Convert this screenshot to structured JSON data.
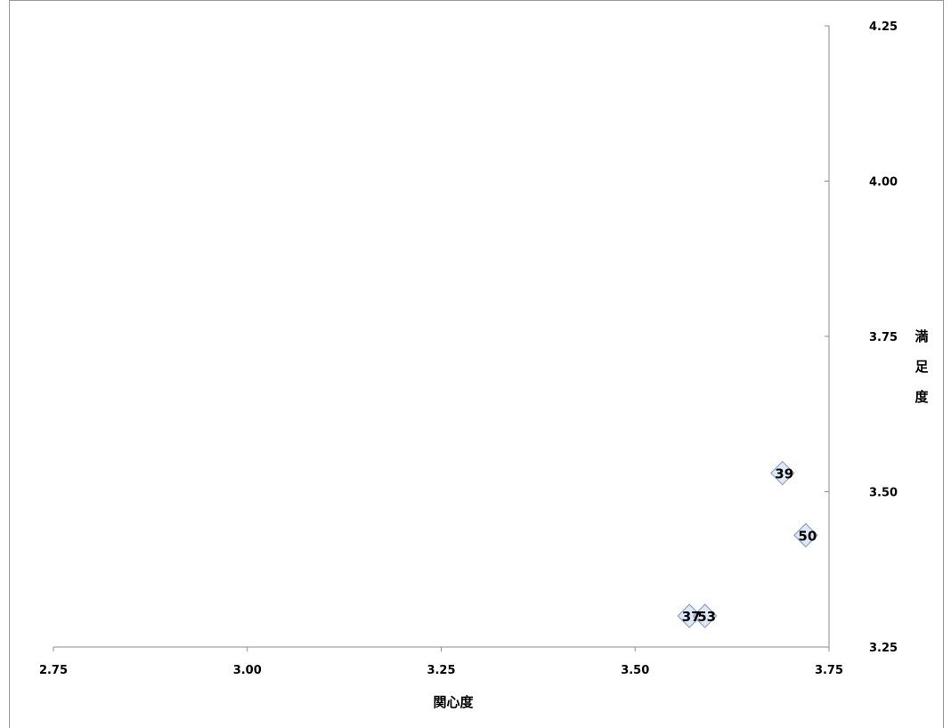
{
  "chart_data": {
    "type": "scatter",
    "title": "",
    "xlabel": "関心度",
    "ylabel": [
      "満",
      "足",
      "度"
    ],
    "xlim": [
      2.75,
      3.75
    ],
    "ylim": [
      3.25,
      4.25
    ],
    "x_ticks": [
      "2.75",
      "3.00",
      "3.25",
      "3.50",
      "3.75"
    ],
    "y_ticks": [
      "3.25",
      "3.50",
      "3.75",
      "4.00",
      "4.25"
    ],
    "grid": false,
    "marker": "diamond",
    "colors": {
      "marker_fill": "#dfe8f7",
      "marker_stroke": "#7f95b8",
      "axis": "#8c8c8c"
    },
    "points": [
      {
        "label": "39",
        "x": 3.69,
        "y": 3.53
      },
      {
        "label": "50",
        "x": 3.72,
        "y": 3.43
      },
      {
        "label": "37",
        "x": 3.57,
        "y": 3.3
      },
      {
        "label": "53",
        "x": 3.59,
        "y": 3.3
      }
    ]
  }
}
